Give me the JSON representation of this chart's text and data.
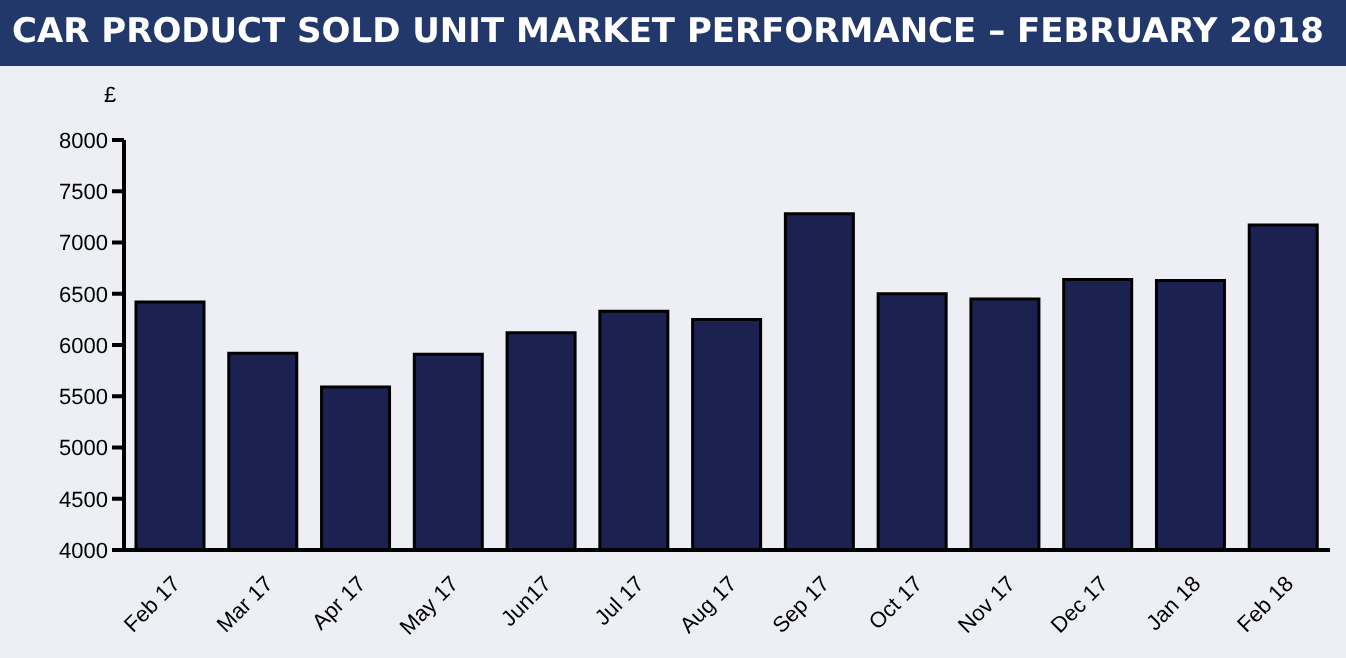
{
  "chart_data": {
    "type": "bar",
    "title": "CAR PRODUCT SOLD UNIT MARKET PERFORMANCE – FEBRUARY 2018",
    "ylabel": "£",
    "categories": [
      "Feb 17",
      "Mar 17",
      "Apr 17",
      "May 17",
      "Jun17",
      "Jul 17",
      "Aug 17",
      "Sep 17",
      "Oct 17",
      "Nov 17",
      "Dec 17",
      "Jan 18",
      "Feb 18"
    ],
    "values": [
      6420,
      5920,
      5590,
      5910,
      6120,
      6330,
      6250,
      7280,
      6500,
      6450,
      6640,
      6630,
      7170
    ],
    "color": "#1b2150",
    "ylim": [
      4000,
      8000
    ],
    "yticks": [
      4000,
      4500,
      5000,
      5500,
      6000,
      6500,
      7000,
      7500,
      8000
    ],
    "grid": false,
    "legend": false
  }
}
